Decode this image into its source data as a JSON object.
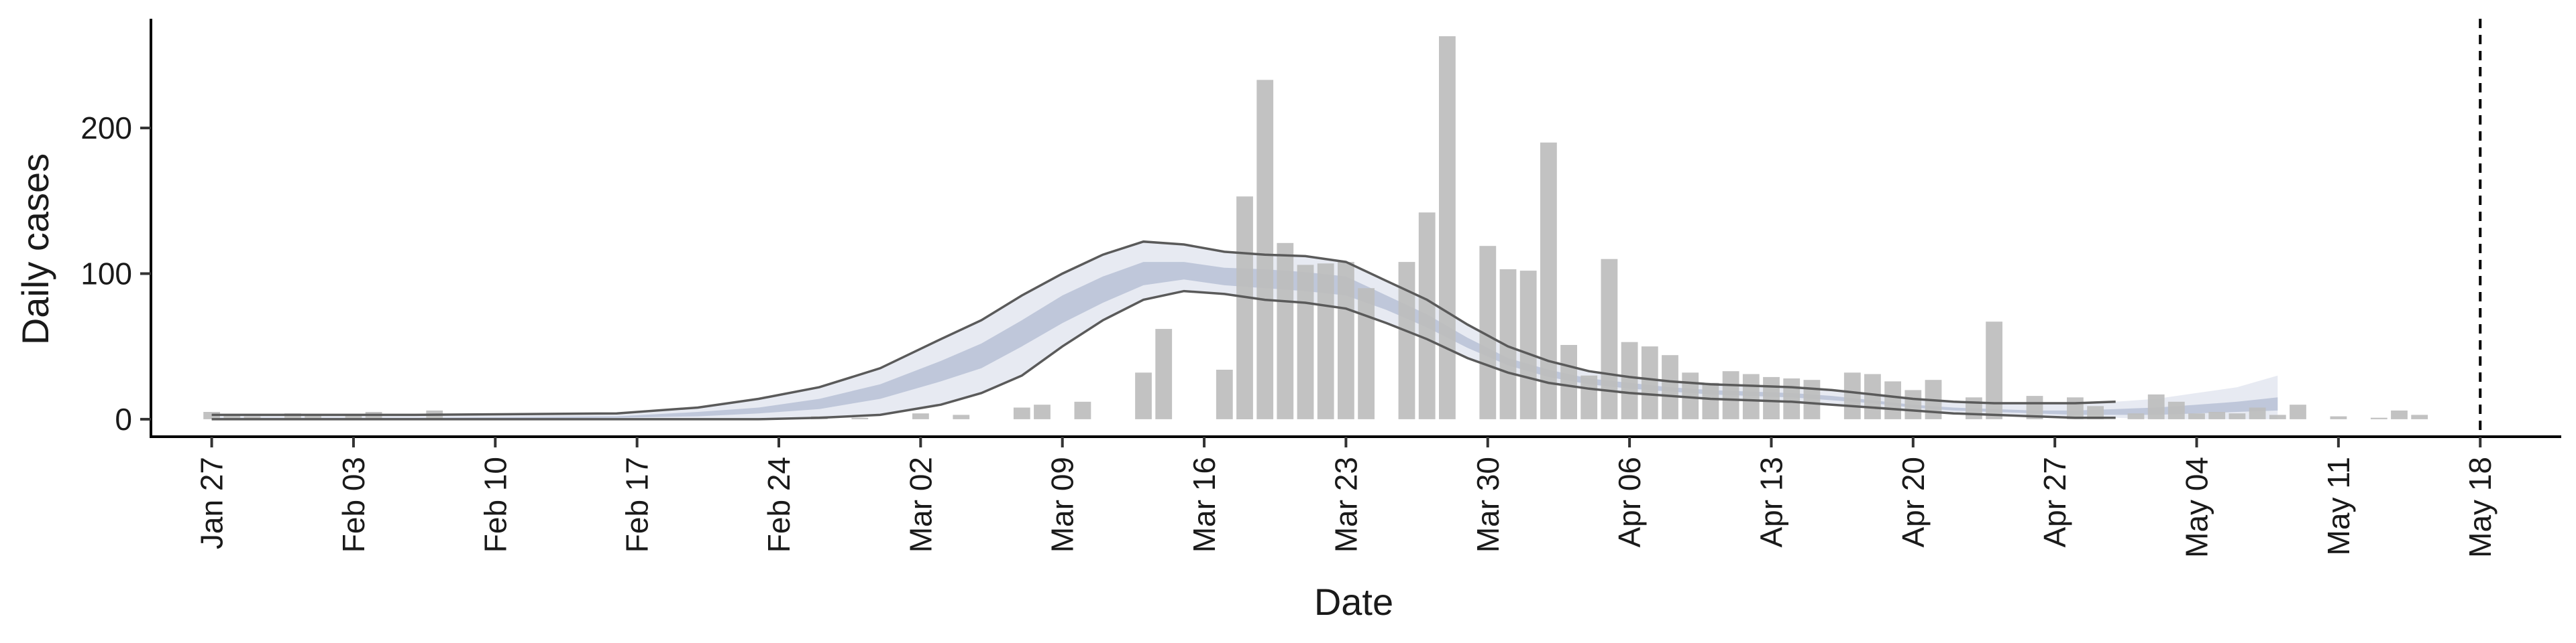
{
  "chart_data": {
    "type": "bar",
    "xlabel": "Date",
    "ylabel": "Daily cases",
    "x_ticks": [
      "Jan 27",
      "Feb 03",
      "Feb 10",
      "Feb 17",
      "Feb 24",
      "Mar 02",
      "Mar 09",
      "Mar 16",
      "Mar 23",
      "Mar 30",
      "Apr 06",
      "Apr 13",
      "Apr 20",
      "Apr 27",
      "May 04",
      "May 11",
      "May 18"
    ],
    "y_ticks": [
      0,
      100,
      200
    ],
    "ylim": [
      -12,
      275
    ],
    "x_range_days": [
      -3,
      116
    ],
    "grid": false,
    "legend": "none",
    "vline_day": 112,
    "colors": {
      "bars": "#bdbdbd",
      "band_outer": "#dfe3ee",
      "band_inner": "#b7c1d6",
      "median_lines": "#5a5a5a",
      "vline": "#000000"
    },
    "daily_cases": [
      {
        "day": 0,
        "value": 5
      },
      {
        "day": 1,
        "value": 3
      },
      {
        "day": 2,
        "value": 2
      },
      {
        "day": 4,
        "value": 4
      },
      {
        "day": 5,
        "value": 3
      },
      {
        "day": 7,
        "value": 3
      },
      {
        "day": 8,
        "value": 5
      },
      {
        "day": 11,
        "value": 6
      },
      {
        "day": 30,
        "value": 2
      },
      {
        "day": 32,
        "value": 1
      },
      {
        "day": 35,
        "value": 4
      },
      {
        "day": 37,
        "value": 3
      },
      {
        "day": 40,
        "value": 8
      },
      {
        "day": 41,
        "value": 10
      },
      {
        "day": 43,
        "value": 12
      },
      {
        "day": 46,
        "value": 32
      },
      {
        "day": 47,
        "value": 62
      },
      {
        "day": 50,
        "value": 34
      },
      {
        "day": 51,
        "value": 153
      },
      {
        "day": 52,
        "value": 233
      },
      {
        "day": 53,
        "value": 121
      },
      {
        "day": 54,
        "value": 106
      },
      {
        "day": 55,
        "value": 107
      },
      {
        "day": 56,
        "value": 108
      },
      {
        "day": 57,
        "value": 90
      },
      {
        "day": 59,
        "value": 108
      },
      {
        "day": 60,
        "value": 142
      },
      {
        "day": 61,
        "value": 263
      },
      {
        "day": 63,
        "value": 119
      },
      {
        "day": 64,
        "value": 103
      },
      {
        "day": 65,
        "value": 102
      },
      {
        "day": 66,
        "value": 190
      },
      {
        "day": 67,
        "value": 51
      },
      {
        "day": 68,
        "value": 30
      },
      {
        "day": 69,
        "value": 110
      },
      {
        "day": 70,
        "value": 53
      },
      {
        "day": 71,
        "value": 50
      },
      {
        "day": 72,
        "value": 44
      },
      {
        "day": 73,
        "value": 32
      },
      {
        "day": 74,
        "value": 25
      },
      {
        "day": 75,
        "value": 33
      },
      {
        "day": 76,
        "value": 31
      },
      {
        "day": 77,
        "value": 29
      },
      {
        "day": 78,
        "value": 28
      },
      {
        "day": 79,
        "value": 27
      },
      {
        "day": 81,
        "value": 32
      },
      {
        "day": 82,
        "value": 31
      },
      {
        "day": 83,
        "value": 26
      },
      {
        "day": 84,
        "value": 20
      },
      {
        "day": 85,
        "value": 27
      },
      {
        "day": 87,
        "value": 15
      },
      {
        "day": 88,
        "value": 67
      },
      {
        "day": 90,
        "value": 16
      },
      {
        "day": 92,
        "value": 15
      },
      {
        "day": 93,
        "value": 9
      },
      {
        "day": 95,
        "value": 4
      },
      {
        "day": 96,
        "value": 17
      },
      {
        "day": 97,
        "value": 12
      },
      {
        "day": 98,
        "value": 4
      },
      {
        "day": 99,
        "value": 5
      },
      {
        "day": 100,
        "value": 4
      },
      {
        "day": 101,
        "value": 8
      },
      {
        "day": 102,
        "value": 3
      },
      {
        "day": 103,
        "value": 10
      },
      {
        "day": 105,
        "value": 2
      },
      {
        "day": 107,
        "value": 1
      },
      {
        "day": 108,
        "value": 6
      },
      {
        "day": 109,
        "value": 3
      }
    ],
    "estimate": {
      "days": [
        0,
        10,
        20,
        24,
        27,
        30,
        33,
        36,
        38,
        40,
        42,
        44,
        46,
        48,
        50,
        52,
        54,
        56,
        58,
        60,
        62,
        64,
        66,
        68,
        70,
        72,
        74,
        76,
        78,
        80,
        82,
        84,
        86,
        88,
        90,
        92,
        94,
        96,
        98,
        100,
        102
      ],
      "outer_upper": [
        3,
        3,
        4,
        8,
        14,
        22,
        35,
        55,
        68,
        85,
        100,
        113,
        122,
        120,
        115,
        113,
        112,
        108,
        95,
        82,
        65,
        50,
        40,
        33,
        29,
        26,
        24,
        23,
        22,
        20,
        17,
        14,
        12,
        11,
        11,
        11,
        12,
        14,
        18,
        22,
        30
      ],
      "outer_lower": [
        0,
        0,
        0,
        0,
        0,
        1,
        3,
        10,
        18,
        30,
        50,
        68,
        82,
        88,
        86,
        82,
        80,
        76,
        66,
        55,
        42,
        32,
        25,
        21,
        18,
        16,
        14,
        13,
        12,
        10,
        8,
        6,
        4,
        3,
        2,
        1,
        1,
        0,
        0,
        0,
        0
      ],
      "inner_upper": [
        1,
        1,
        2,
        5,
        8,
        14,
        24,
        40,
        52,
        68,
        85,
        98,
        108,
        108,
        104,
        103,
        101,
        98,
        85,
        72,
        56,
        42,
        34,
        28,
        25,
        22,
        20,
        19,
        18,
        16,
        13,
        10,
        8,
        7,
        6,
        6,
        7,
        8,
        10,
        12,
        15
      ],
      "inner_lower": [
        0,
        0,
        1,
        2,
        4,
        7,
        14,
        26,
        35,
        50,
        66,
        80,
        92,
        96,
        92,
        90,
        88,
        85,
        75,
        63,
        49,
        37,
        29,
        24,
        21,
        19,
        17,
        16,
        15,
        13,
        11,
        8,
        6,
        5,
        4,
        3,
        3,
        3,
        4,
        5,
        6
      ],
      "upper_line": [
        3,
        3,
        4,
        8,
        14,
        22,
        35,
        55,
        68,
        85,
        100,
        113,
        122,
        120,
        115,
        113,
        112,
        108,
        95,
        82,
        65,
        50,
        40,
        33,
        29,
        26,
        24,
        23,
        22,
        20,
        17,
        14,
        12,
        11,
        11,
        11,
        12
      ],
      "lower_line": [
        0,
        0,
        0,
        0,
        0,
        1,
        3,
        10,
        18,
        30,
        50,
        68,
        82,
        88,
        86,
        82,
        80,
        76,
        66,
        55,
        42,
        32,
        25,
        21,
        18,
        16,
        14,
        13,
        12,
        10,
        8,
        6,
        4,
        3,
        2,
        1,
        1
      ]
    }
  }
}
